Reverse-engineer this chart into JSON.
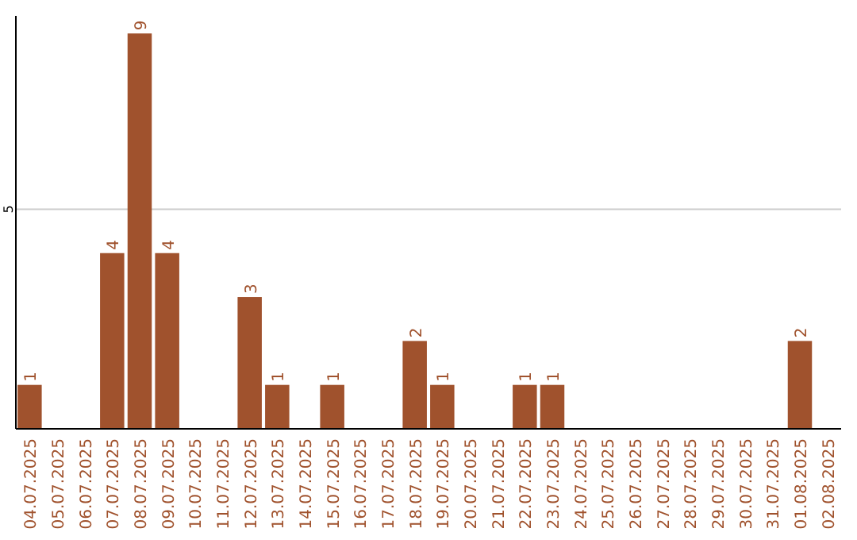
{
  "chart_data": {
    "type": "bar",
    "categories": [
      "04.07.2025",
      "05.07.2025",
      "06.07.2025",
      "07.07.2025",
      "08.07.2025",
      "09.07.2025",
      "10.07.2025",
      "11.07.2025",
      "12.07.2025",
      "13.07.2025",
      "14.07.2025",
      "15.07.2025",
      "16.07.2025",
      "17.07.2025",
      "18.07.2025",
      "19.07.2025",
      "20.07.2025",
      "21.07.2025",
      "22.07.2025",
      "23.07.2025",
      "24.07.2025",
      "25.07.2025",
      "26.07.2025",
      "27.07.2025",
      "28.07.2025",
      "29.07.2025",
      "30.07.2025",
      "31.07.2025",
      "01.08.2025",
      "02.08.2025"
    ],
    "values": [
      1,
      0,
      0,
      4,
      9,
      4,
      0,
      0,
      3,
      1,
      0,
      1,
      0,
      0,
      2,
      1,
      0,
      0,
      1,
      1,
      0,
      0,
      0,
      0,
      0,
      0,
      0,
      0,
      2,
      0
    ],
    "value_labels": [
      "1",
      null,
      null,
      "4",
      "9",
      "4",
      null,
      null,
      "3",
      "1",
      null,
      "1",
      null,
      null,
      "2",
      "1",
      null,
      null,
      "1",
      "1",
      null,
      null,
      null,
      null,
      null,
      null,
      null,
      null,
      "2",
      null
    ],
    "color": "#a0522d",
    "ylim": [
      0,
      9.4
    ],
    "yticks": [
      5
    ],
    "grid": "y"
  }
}
